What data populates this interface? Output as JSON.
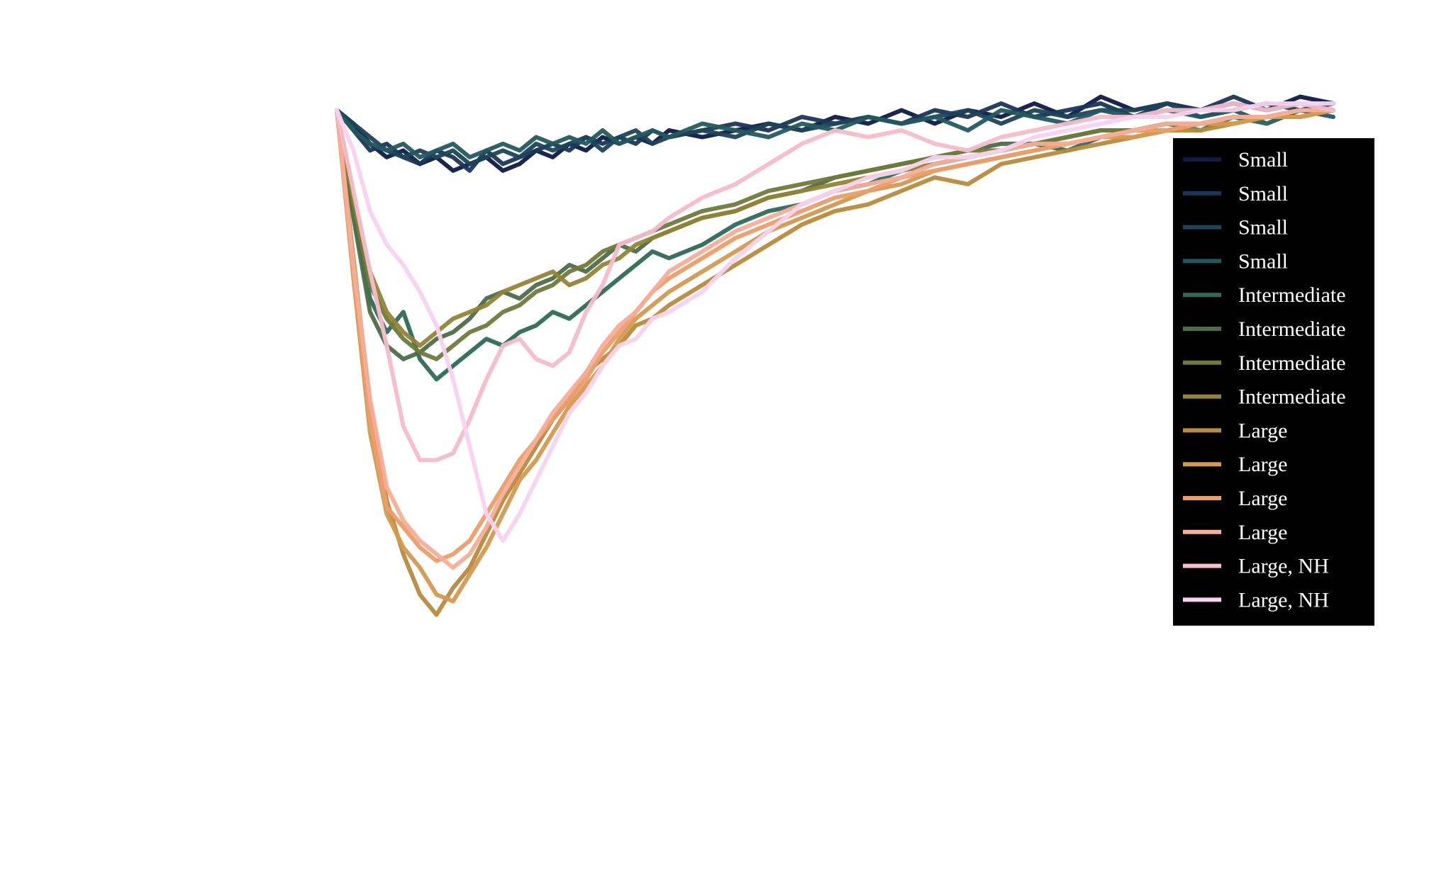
{
  "chart_data": {
    "type": "line",
    "title": "",
    "xlabel": "",
    "ylabel": "",
    "xlim": [
      0,
      60
    ],
    "ylim": [
      -0.9,
      0.05
    ],
    "grid": false,
    "legend_position": "right",
    "background": "#ffffff",
    "legend_background": "#000000",
    "series": [
      {
        "name": "Small",
        "color": "#0f1a45",
        "x": [
          0,
          1,
          2,
          3,
          4,
          5,
          6,
          7,
          8,
          9,
          10,
          11,
          12,
          13,
          14,
          15,
          16,
          17,
          18,
          19,
          20,
          22,
          24,
          26,
          28,
          30,
          32,
          34,
          36,
          38,
          40,
          42,
          44,
          46,
          48,
          50,
          52,
          54,
          56,
          58,
          60
        ],
        "y": [
          0.0,
          -0.02,
          -0.05,
          -0.07,
          -0.06,
          -0.08,
          -0.07,
          -0.09,
          -0.08,
          -0.07,
          -0.09,
          -0.08,
          -0.06,
          -0.07,
          -0.05,
          -0.06,
          -0.04,
          -0.05,
          -0.04,
          -0.05,
          -0.03,
          -0.04,
          -0.03,
          -0.02,
          -0.03,
          -0.01,
          -0.02,
          0.0,
          -0.02,
          0.0,
          -0.01,
          0.01,
          -0.01,
          0.02,
          0.0,
          0.01,
          0.0,
          0.01,
          0.0,
          0.02,
          0.01
        ]
      },
      {
        "name": "Small",
        "color": "#1b3657",
        "x": [
          0,
          1,
          2,
          3,
          4,
          5,
          6,
          7,
          8,
          9,
          10,
          11,
          12,
          13,
          14,
          15,
          16,
          17,
          18,
          19,
          20,
          22,
          24,
          26,
          28,
          30,
          32,
          34,
          36,
          38,
          40,
          42,
          44,
          46,
          48,
          50,
          52,
          54,
          56,
          58,
          60
        ],
        "y": [
          0.0,
          -0.03,
          -0.06,
          -0.05,
          -0.07,
          -0.08,
          -0.06,
          -0.07,
          -0.09,
          -0.06,
          -0.08,
          -0.07,
          -0.06,
          -0.05,
          -0.06,
          -0.04,
          -0.05,
          -0.04,
          -0.05,
          -0.03,
          -0.04,
          -0.03,
          -0.02,
          -0.03,
          -0.01,
          -0.02,
          -0.01,
          -0.02,
          0.0,
          -0.01,
          0.01,
          -0.01,
          0.0,
          0.01,
          -0.01,
          0.01,
          0.0,
          0.02,
          0.0,
          0.01,
          0.0
        ]
      },
      {
        "name": "Small",
        "color": "#1e4459",
        "x": [
          0,
          1,
          2,
          3,
          4,
          5,
          6,
          7,
          8,
          9,
          10,
          11,
          12,
          13,
          14,
          15,
          16,
          17,
          18,
          19,
          20,
          22,
          24,
          26,
          28,
          30,
          32,
          34,
          36,
          38,
          40,
          42,
          44,
          46,
          48,
          50,
          52,
          54,
          56,
          58,
          60
        ],
        "y": [
          0.0,
          -0.02,
          -0.04,
          -0.06,
          -0.07,
          -0.06,
          -0.07,
          -0.06,
          -0.08,
          -0.07,
          -0.06,
          -0.07,
          -0.05,
          -0.06,
          -0.05,
          -0.04,
          -0.06,
          -0.04,
          -0.03,
          -0.05,
          -0.04,
          -0.03,
          -0.04,
          -0.02,
          -0.03,
          -0.02,
          -0.01,
          -0.02,
          -0.01,
          0.0,
          -0.02,
          0.0,
          -0.01,
          0.0,
          0.0,
          0.01,
          -0.01,
          0.0,
          0.01,
          0.0,
          0.01
        ]
      },
      {
        "name": "Small",
        "color": "#245860",
        "x": [
          0,
          1,
          2,
          3,
          4,
          5,
          6,
          7,
          8,
          9,
          10,
          11,
          12,
          13,
          14,
          15,
          16,
          17,
          18,
          19,
          20,
          22,
          24,
          26,
          28,
          30,
          32,
          34,
          36,
          38,
          40,
          42,
          44,
          46,
          48,
          50,
          52,
          54,
          56,
          58,
          60
        ],
        "y": [
          0.0,
          -0.03,
          -0.05,
          -0.06,
          -0.05,
          -0.07,
          -0.06,
          -0.05,
          -0.07,
          -0.06,
          -0.05,
          -0.06,
          -0.04,
          -0.05,
          -0.04,
          -0.05,
          -0.03,
          -0.05,
          -0.04,
          -0.03,
          -0.04,
          -0.02,
          -0.03,
          -0.04,
          -0.02,
          -0.03,
          -0.01,
          -0.02,
          -0.01,
          -0.03,
          0.0,
          -0.01,
          -0.02,
          0.0,
          -0.01,
          0.0,
          -0.01,
          0.0,
          -0.02,
          0.0,
          -0.01
        ]
      },
      {
        "name": "Intermediate",
        "color": "#2f6a5a",
        "x": [
          0,
          1,
          2,
          3,
          4,
          5,
          6,
          7,
          8,
          9,
          10,
          11,
          12,
          13,
          14,
          15,
          16,
          17,
          18,
          19,
          20,
          22,
          24,
          26,
          28,
          30,
          32,
          34,
          36,
          38,
          40,
          42,
          44,
          46,
          48,
          50,
          52,
          54,
          56,
          58,
          60
        ],
        "y": [
          0.0,
          -0.15,
          -0.28,
          -0.33,
          -0.3,
          -0.37,
          -0.4,
          -0.38,
          -0.36,
          -0.34,
          -0.35,
          -0.33,
          -0.32,
          -0.3,
          -0.31,
          -0.29,
          -0.27,
          -0.25,
          -0.23,
          -0.21,
          -0.22,
          -0.2,
          -0.17,
          -0.15,
          -0.14,
          -0.12,
          -0.11,
          -0.09,
          -0.08,
          -0.07,
          -0.06,
          -0.05,
          -0.06,
          -0.04,
          -0.03,
          -0.02,
          -0.03,
          -0.01,
          -0.02,
          0.0,
          0.0
        ]
      },
      {
        "name": "Intermediate",
        "color": "#4d6d48",
        "x": [
          0,
          1,
          2,
          3,
          4,
          5,
          6,
          7,
          8,
          9,
          10,
          11,
          12,
          13,
          14,
          15,
          16,
          17,
          18,
          19,
          20,
          22,
          24,
          26,
          28,
          30,
          32,
          34,
          36,
          38,
          40,
          42,
          44,
          46,
          48,
          50,
          52,
          54,
          56,
          58,
          60
        ],
        "y": [
          0.0,
          -0.16,
          -0.3,
          -0.35,
          -0.37,
          -0.36,
          -0.34,
          -0.33,
          -0.31,
          -0.28,
          -0.27,
          -0.28,
          -0.26,
          -0.25,
          -0.23,
          -0.24,
          -0.22,
          -0.2,
          -0.21,
          -0.19,
          -0.18,
          -0.16,
          -0.15,
          -0.13,
          -0.12,
          -0.1,
          -0.09,
          -0.08,
          -0.07,
          -0.06,
          -0.05,
          -0.05,
          -0.04,
          -0.03,
          -0.03,
          -0.02,
          -0.02,
          -0.01,
          -0.01,
          0.0,
          0.0
        ]
      },
      {
        "name": "Intermediate",
        "color": "#707a3b",
        "x": [
          0,
          1,
          2,
          3,
          4,
          5,
          6,
          7,
          8,
          9,
          10,
          11,
          12,
          13,
          14,
          15,
          16,
          17,
          18,
          19,
          20,
          22,
          24,
          26,
          28,
          30,
          32,
          34,
          36,
          38,
          40,
          42,
          44,
          46,
          48,
          50,
          52,
          54,
          56,
          58,
          60
        ],
        "y": [
          0.0,
          -0.14,
          -0.26,
          -0.31,
          -0.34,
          -0.36,
          -0.37,
          -0.35,
          -0.33,
          -0.32,
          -0.3,
          -0.29,
          -0.27,
          -0.26,
          -0.24,
          -0.23,
          -0.21,
          -0.2,
          -0.19,
          -0.18,
          -0.17,
          -0.15,
          -0.14,
          -0.12,
          -0.11,
          -0.1,
          -0.09,
          -0.08,
          -0.07,
          -0.06,
          -0.06,
          -0.05,
          -0.04,
          -0.03,
          -0.03,
          -0.02,
          -0.02,
          -0.01,
          -0.01,
          0.0,
          0.0
        ]
      },
      {
        "name": "Intermediate",
        "color": "#928436",
        "x": [
          0,
          1,
          2,
          3,
          4,
          5,
          6,
          7,
          8,
          9,
          10,
          11,
          12,
          13,
          14,
          15,
          16,
          17,
          18,
          19,
          20,
          22,
          24,
          26,
          28,
          30,
          32,
          34,
          36,
          38,
          40,
          42,
          44,
          46,
          48,
          50,
          52,
          54,
          56,
          58,
          60
        ],
        "y": [
          0.0,
          -0.13,
          -0.24,
          -0.3,
          -0.33,
          -0.35,
          -0.33,
          -0.31,
          -0.3,
          -0.29,
          -0.27,
          -0.26,
          -0.25,
          -0.24,
          -0.26,
          -0.25,
          -0.23,
          -0.22,
          -0.2,
          -0.19,
          -0.18,
          -0.16,
          -0.15,
          -0.13,
          -0.12,
          -0.11,
          -0.1,
          -0.09,
          -0.08,
          -0.07,
          -0.06,
          -0.05,
          -0.05,
          -0.04,
          -0.03,
          -0.03,
          -0.02,
          -0.02,
          -0.01,
          -0.01,
          0.0
        ]
      },
      {
        "name": "Large",
        "color": "#b88a3c",
        "x": [
          0,
          1,
          2,
          3,
          4,
          5,
          6,
          7,
          8,
          9,
          10,
          11,
          12,
          13,
          14,
          15,
          16,
          17,
          18,
          19,
          20,
          22,
          24,
          26,
          28,
          30,
          32,
          34,
          36,
          38,
          40,
          42,
          44,
          46,
          48,
          50,
          52,
          54,
          56,
          58,
          60
        ],
        "y": [
          0.0,
          -0.22,
          -0.44,
          -0.58,
          -0.66,
          -0.72,
          -0.75,
          -0.71,
          -0.68,
          -0.63,
          -0.58,
          -0.54,
          -0.5,
          -0.46,
          -0.43,
          -0.39,
          -0.37,
          -0.35,
          -0.32,
          -0.31,
          -0.29,
          -0.26,
          -0.23,
          -0.2,
          -0.17,
          -0.15,
          -0.14,
          -0.12,
          -0.1,
          -0.11,
          -0.08,
          -0.07,
          -0.06,
          -0.05,
          -0.04,
          -0.03,
          -0.03,
          -0.02,
          -0.01,
          -0.01,
          0.0
        ]
      },
      {
        "name": "Large",
        "color": "#d39a52",
        "x": [
          0,
          1,
          2,
          3,
          4,
          5,
          6,
          7,
          8,
          9,
          10,
          11,
          12,
          13,
          14,
          15,
          16,
          17,
          18,
          19,
          20,
          22,
          24,
          26,
          28,
          30,
          32,
          34,
          36,
          38,
          40,
          42,
          44,
          46,
          48,
          50,
          52,
          54,
          56,
          58,
          60
        ],
        "y": [
          0.0,
          -0.25,
          -0.48,
          -0.6,
          -0.65,
          -0.68,
          -0.72,
          -0.73,
          -0.69,
          -0.65,
          -0.6,
          -0.55,
          -0.52,
          -0.48,
          -0.44,
          -0.41,
          -0.38,
          -0.34,
          -0.31,
          -0.29,
          -0.27,
          -0.24,
          -0.21,
          -0.18,
          -0.16,
          -0.14,
          -0.12,
          -0.11,
          -0.09,
          -0.08,
          -0.07,
          -0.06,
          -0.05,
          -0.04,
          -0.04,
          -0.03,
          -0.02,
          -0.02,
          -0.01,
          -0.01,
          0.0
        ]
      },
      {
        "name": "Large",
        "color": "#eb9e6a",
        "x": [
          0,
          1,
          2,
          3,
          4,
          5,
          6,
          7,
          8,
          9,
          10,
          11,
          12,
          13,
          14,
          15,
          16,
          17,
          18,
          19,
          20,
          22,
          24,
          26,
          28,
          30,
          32,
          34,
          36,
          38,
          40,
          42,
          44,
          46,
          48,
          50,
          52,
          54,
          56,
          58,
          60
        ],
        "y": [
          0.0,
          -0.24,
          -0.46,
          -0.59,
          -0.62,
          -0.65,
          -0.67,
          -0.66,
          -0.64,
          -0.6,
          -0.56,
          -0.52,
          -0.49,
          -0.46,
          -0.43,
          -0.4,
          -0.36,
          -0.33,
          -0.3,
          -0.27,
          -0.25,
          -0.22,
          -0.19,
          -0.17,
          -0.15,
          -0.13,
          -0.12,
          -0.1,
          -0.09,
          -0.08,
          -0.07,
          -0.06,
          -0.05,
          -0.04,
          -0.03,
          -0.03,
          -0.02,
          -0.01,
          -0.01,
          0.0,
          0.0
        ]
      },
      {
        "name": "Large",
        "color": "#f5ae98",
        "x": [
          0,
          1,
          2,
          3,
          4,
          5,
          6,
          7,
          8,
          9,
          10,
          11,
          12,
          13,
          14,
          15,
          16,
          17,
          18,
          19,
          20,
          22,
          24,
          26,
          28,
          30,
          32,
          34,
          36,
          38,
          40,
          42,
          44,
          46,
          48,
          50,
          52,
          54,
          56,
          58,
          60
        ],
        "y": [
          0.0,
          -0.23,
          -0.43,
          -0.56,
          -0.61,
          -0.64,
          -0.66,
          -0.68,
          -0.66,
          -0.62,
          -0.57,
          -0.53,
          -0.49,
          -0.45,
          -0.42,
          -0.39,
          -0.35,
          -0.32,
          -0.3,
          -0.27,
          -0.24,
          -0.21,
          -0.18,
          -0.16,
          -0.14,
          -0.12,
          -0.11,
          -0.1,
          -0.08,
          -0.07,
          -0.06,
          -0.05,
          -0.05,
          -0.04,
          -0.03,
          -0.02,
          -0.02,
          -0.01,
          -0.01,
          0.0,
          0.0
        ]
      },
      {
        "name": "Large, NH",
        "color": "#f6bccb",
        "x": [
          0,
          1,
          2,
          3,
          4,
          5,
          6,
          7,
          8,
          9,
          10,
          11,
          12,
          13,
          14,
          15,
          16,
          17,
          18,
          19,
          20,
          22,
          24,
          26,
          28,
          30,
          32,
          34,
          36,
          38,
          40,
          42,
          44,
          46,
          48,
          50,
          52,
          54,
          56,
          58,
          60
        ],
        "y": [
          0.0,
          -0.12,
          -0.24,
          -0.35,
          -0.47,
          -0.52,
          -0.52,
          -0.51,
          -0.46,
          -0.4,
          -0.35,
          -0.34,
          -0.37,
          -0.38,
          -0.36,
          -0.3,
          -0.26,
          -0.2,
          -0.19,
          -0.18,
          -0.16,
          -0.13,
          -0.11,
          -0.08,
          -0.05,
          -0.03,
          -0.04,
          -0.03,
          -0.05,
          -0.06,
          -0.04,
          -0.03,
          -0.02,
          -0.01,
          -0.01,
          0.0,
          0.0,
          0.01,
          0.0,
          0.01,
          0.0
        ]
      },
      {
        "name": "Large, NH",
        "color": "#f7d3ef",
        "x": [
          0,
          1,
          2,
          3,
          4,
          5,
          6,
          7,
          8,
          9,
          10,
          11,
          12,
          13,
          14,
          15,
          16,
          17,
          18,
          19,
          20,
          22,
          24,
          26,
          28,
          30,
          32,
          34,
          36,
          38,
          40,
          42,
          44,
          46,
          48,
          50,
          52,
          54,
          56,
          58,
          60
        ],
        "y": [
          0.0,
          -0.06,
          -0.15,
          -0.2,
          -0.23,
          -0.27,
          -0.32,
          -0.4,
          -0.5,
          -0.6,
          -0.64,
          -0.6,
          -0.55,
          -0.5,
          -0.45,
          -0.42,
          -0.38,
          -0.35,
          -0.34,
          -0.31,
          -0.3,
          -0.27,
          -0.22,
          -0.18,
          -0.14,
          -0.12,
          -0.1,
          -0.09,
          -0.07,
          -0.07,
          -0.06,
          -0.04,
          -0.03,
          -0.02,
          -0.01,
          -0.01,
          0.0,
          0.0,
          0.01,
          0.01,
          0.01
        ]
      }
    ]
  }
}
